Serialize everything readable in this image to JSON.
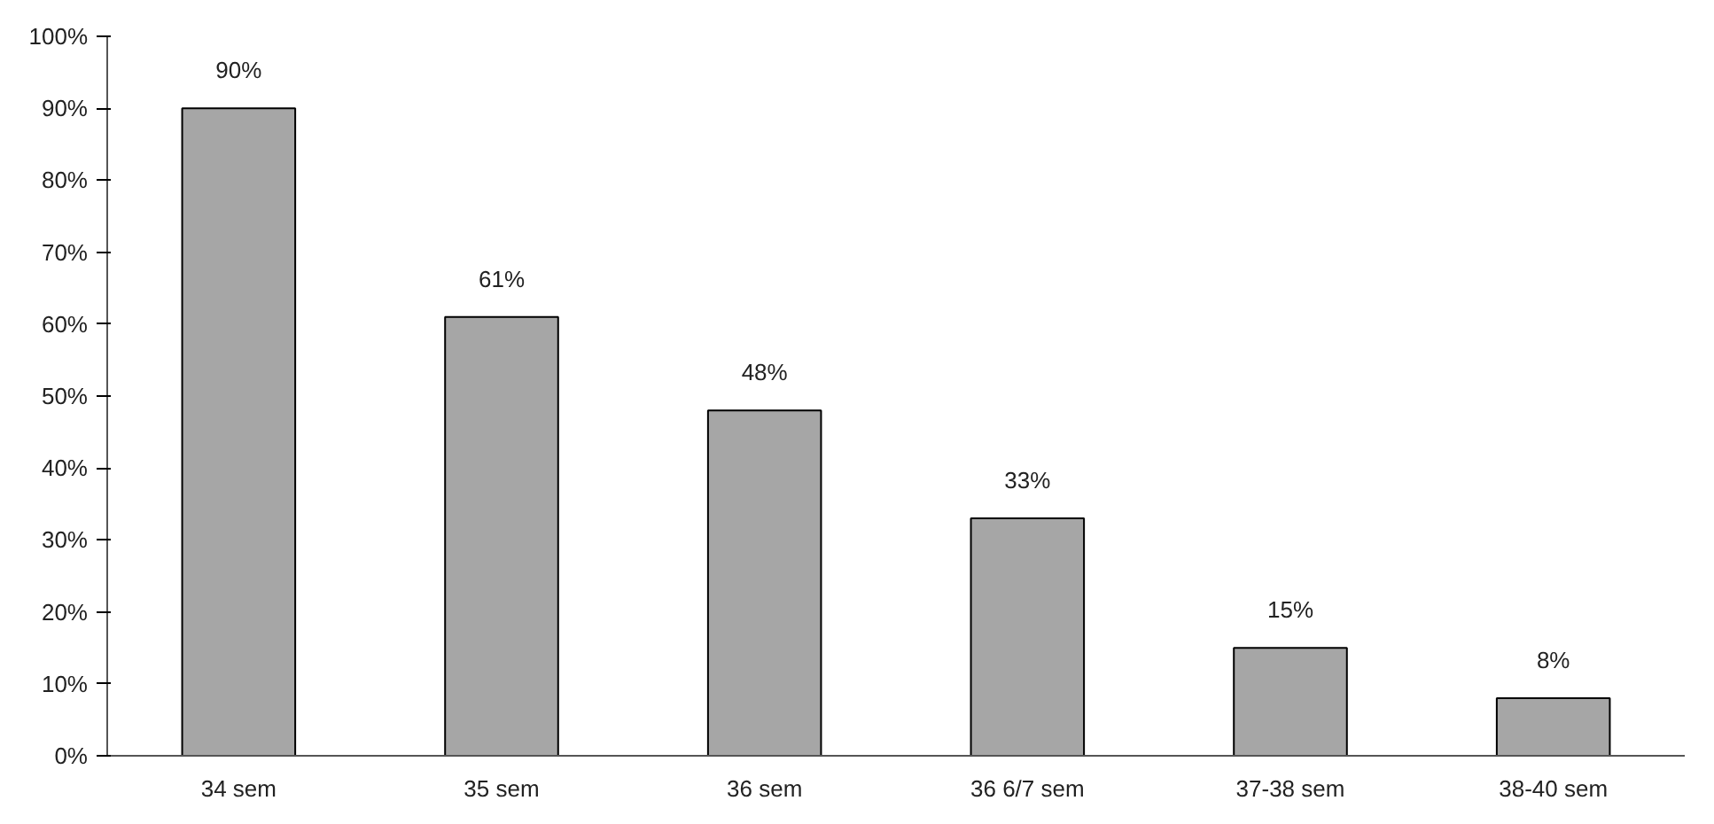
{
  "chart_data": {
    "type": "bar",
    "categories": [
      "34 sem",
      "35 sem",
      "36 sem",
      "36 6/7 sem",
      "37-38 sem",
      "38-40 sem"
    ],
    "values": [
      90,
      61,
      48,
      33,
      15,
      8
    ],
    "value_labels": [
      "90%",
      "61%",
      "48%",
      "33%",
      "15%",
      "8%"
    ],
    "color": "#a6a6a6",
    "ylim": [
      0,
      100
    ],
    "yticks": [
      {
        "value": 0,
        "label": "0%"
      },
      {
        "value": 10,
        "label": "10%"
      },
      {
        "value": 20,
        "label": "20%"
      },
      {
        "value": 30,
        "label": "30%"
      },
      {
        "value": 40,
        "label": "40%"
      },
      {
        "value": 50,
        "label": "50%"
      },
      {
        "value": 60,
        "label": "60%"
      },
      {
        "value": 70,
        "label": "70%"
      },
      {
        "value": 80,
        "label": "80%"
      },
      {
        "value": 90,
        "label": "90%"
      },
      {
        "value": 100,
        "label": "100%"
      }
    ],
    "grid": false
  }
}
